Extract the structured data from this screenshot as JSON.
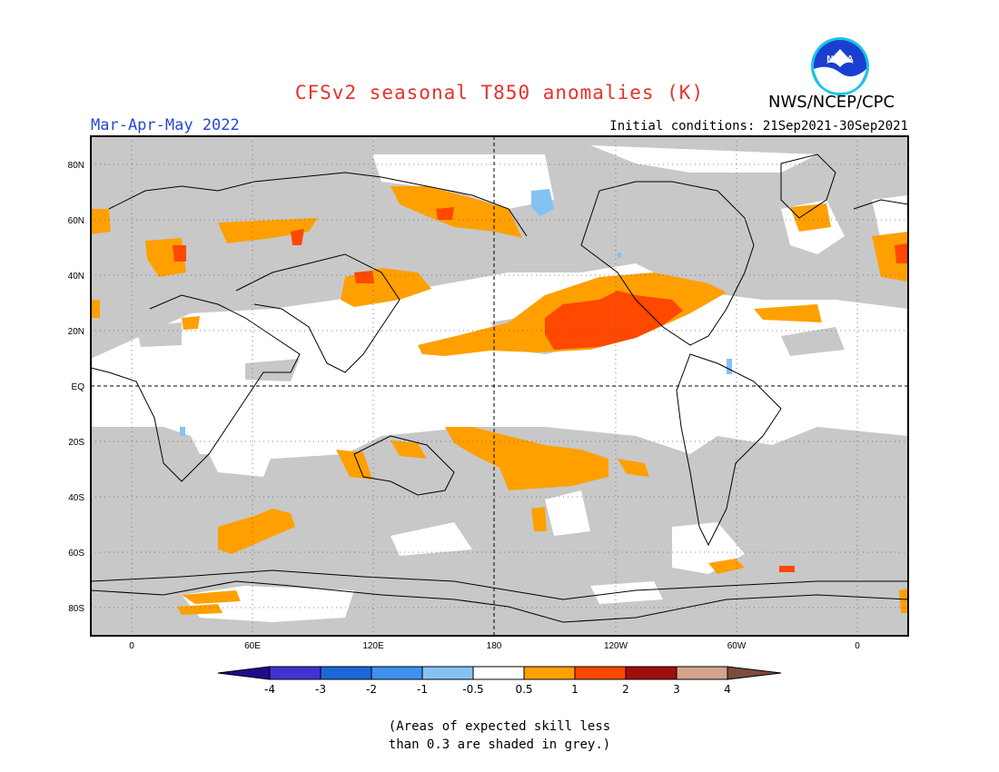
{
  "header": {
    "title": "CFSv2 seasonal T850 anomalies (K)",
    "season": "Mar-Apr-May 2022",
    "initial_conditions": "Initial conditions: 21Sep2021-30Sep2021",
    "agency": "NWS/NCEP/CPC",
    "logo_text": "NOAA"
  },
  "map": {
    "projection": "equirectangular",
    "lon_ticks": [
      "0",
      "60E",
      "120E",
      "180",
      "120W",
      "60W",
      "0"
    ],
    "lat_ticks": [
      "80N",
      "60N",
      "40N",
      "20N",
      "EQ",
      "20S",
      "40S",
      "60S",
      "80S"
    ],
    "lon_tick_values": [
      0,
      60,
      120,
      180,
      240,
      300,
      360
    ],
    "lat_tick_values": [
      80,
      60,
      40,
      20,
      0,
      -20,
      -40,
      -60,
      -80
    ],
    "background_color": "#c8c8c8",
    "neutral_color": "#ffffff"
  },
  "colorbar": {
    "colors": [
      "#1f0a8c",
      "#4431d2",
      "#1c67d8",
      "#3e91ee",
      "#84c2f4",
      "#ffffff",
      "#ffa000",
      "#ff4800",
      "#a00f0f",
      "#d4a48e",
      "#7a4c3c"
    ],
    "labels": [
      "-4",
      "-3",
      "-2",
      "-1",
      "-0.5",
      "0.5",
      "1",
      "2",
      "3",
      "4"
    ]
  },
  "footnote": {
    "line1": "(Areas of expected skill less",
    "line2": "than 0.3 are shaded in grey.)"
  }
}
